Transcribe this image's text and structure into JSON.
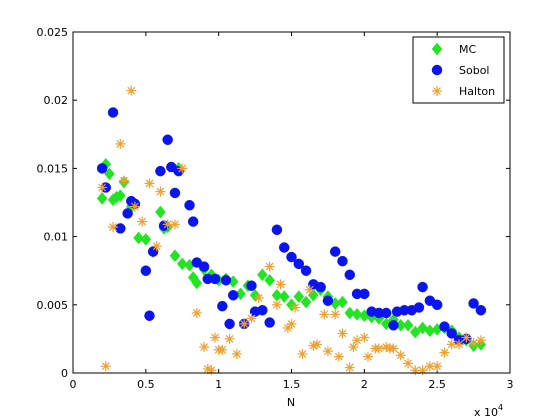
{
  "chart_data": {
    "type": "scatter",
    "title": "",
    "xlabel": "N",
    "ylabel": "",
    "x_exponent_label": "x 10",
    "x_exponent_power": "4",
    "xlim": [
      0,
      30000
    ],
    "ylim": [
      0,
      0.025
    ],
    "x_ticks": [
      0,
      5000,
      10000,
      15000,
      20000,
      25000,
      30000
    ],
    "x_tick_labels": [
      "0",
      "0.5",
      "1",
      "1.5",
      "2",
      "2.5",
      "3"
    ],
    "y_ticks": [
      0,
      0.005,
      0.01,
      0.015,
      0.02,
      0.025
    ],
    "y_tick_labels": [
      "0",
      "0.005",
      "0.01",
      "0.015",
      "0.02",
      "0.025"
    ],
    "grid": false,
    "legend_position": "top-right",
    "series": [
      {
        "name": "MC",
        "color": "#22e522",
        "marker": "diamond",
        "points": [
          [
            2000,
            0.0128
          ],
          [
            2250,
            0.0153
          ],
          [
            2500,
            0.0146
          ],
          [
            2750,
            0.0127
          ],
          [
            3000,
            0.0129
          ],
          [
            3250,
            0.013
          ],
          [
            3500,
            0.014
          ],
          [
            4000,
            0.0122
          ],
          [
            4500,
            0.0099
          ],
          [
            5000,
            0.0098
          ],
          [
            5500,
            0.0089
          ],
          [
            6000,
            0.0118
          ],
          [
            6250,
            0.0106
          ],
          [
            6500,
            0.0107
          ],
          [
            7000,
            0.0086
          ],
          [
            7250,
            0.015
          ],
          [
            7500,
            0.008
          ],
          [
            8000,
            0.0079
          ],
          [
            8250,
            0.007
          ],
          [
            8500,
            0.0066
          ],
          [
            9000,
            0.0076
          ],
          [
            9500,
            0.0072
          ],
          [
            10000,
            0.0068
          ],
          [
            10500,
            0.0069
          ],
          [
            11000,
            0.0067
          ],
          [
            11500,
            0.0058
          ],
          [
            12000,
            0.0064
          ],
          [
            12500,
            0.0057
          ],
          [
            13000,
            0.0072
          ],
          [
            13500,
            0.0068
          ],
          [
            14000,
            0.0057
          ],
          [
            14500,
            0.0056
          ],
          [
            15000,
            0.005
          ],
          [
            15500,
            0.0056
          ],
          [
            16000,
            0.0052
          ],
          [
            16500,
            0.0057
          ],
          [
            17000,
            0.0061
          ],
          [
            17500,
            0.0056
          ],
          [
            18000,
            0.0051
          ],
          [
            18500,
            0.0052
          ],
          [
            19000,
            0.0044
          ],
          [
            19500,
            0.0043
          ],
          [
            20000,
            0.0042
          ],
          [
            20500,
            0.0041
          ],
          [
            21000,
            0.004
          ],
          [
            21500,
            0.0036
          ],
          [
            22000,
            0.0039
          ],
          [
            22500,
            0.0035
          ],
          [
            23000,
            0.0035
          ],
          [
            23500,
            0.003
          ],
          [
            24000,
            0.0033
          ],
          [
            24500,
            0.0031
          ],
          [
            25000,
            0.0032
          ],
          [
            25500,
            0.0033
          ],
          [
            26000,
            0.0031
          ],
          [
            26500,
            0.0026
          ],
          [
            27000,
            0.0024
          ],
          [
            27500,
            0.002
          ],
          [
            28000,
            0.0021
          ]
        ]
      },
      {
        "name": "Sobol",
        "color": "#0a14f0",
        "marker": "circle",
        "points": [
          [
            2000,
            0.015
          ],
          [
            2250,
            0.0136
          ],
          [
            2750,
            0.0191
          ],
          [
            3250,
            0.0106
          ],
          [
            3750,
            0.0117
          ],
          [
            4000,
            0.0126
          ],
          [
            4250,
            0.0124
          ],
          [
            5000,
            0.0075
          ],
          [
            5250,
            0.0042
          ],
          [
            5500,
            0.0089
          ],
          [
            6000,
            0.0148
          ],
          [
            6250,
            0.0108
          ],
          [
            6500,
            0.0171
          ],
          [
            6750,
            0.0151
          ],
          [
            7000,
            0.0132
          ],
          [
            7250,
            0.0148
          ],
          [
            8000,
            0.0123
          ],
          [
            8250,
            0.0111
          ],
          [
            8500,
            0.0081
          ],
          [
            9000,
            0.0078
          ],
          [
            9250,
            0.0069
          ],
          [
            9750,
            0.0069
          ],
          [
            10250,
            0.0049
          ],
          [
            10500,
            0.0068
          ],
          [
            10750,
            0.0036
          ],
          [
            11000,
            0.0057
          ],
          [
            11750,
            0.0036
          ],
          [
            12250,
            0.0064
          ],
          [
            12500,
            0.0045
          ],
          [
            13000,
            0.0046
          ],
          [
            13500,
            0.0037
          ],
          [
            14000,
            0.0105
          ],
          [
            14500,
            0.0092
          ],
          [
            15000,
            0.0085
          ],
          [
            15500,
            0.008
          ],
          [
            16000,
            0.0075
          ],
          [
            16500,
            0.0065
          ],
          [
            17000,
            0.0063
          ],
          [
            17500,
            0.0053
          ],
          [
            18000,
            0.0089
          ],
          [
            18500,
            0.0082
          ],
          [
            19000,
            0.0072
          ],
          [
            19500,
            0.0058
          ],
          [
            20000,
            0.0058
          ],
          [
            20500,
            0.0045
          ],
          [
            21000,
            0.0044
          ],
          [
            21500,
            0.0044
          ],
          [
            22000,
            0.0035
          ],
          [
            22250,
            0.0045
          ],
          [
            22750,
            0.0046
          ],
          [
            23250,
            0.0046
          ],
          [
            23750,
            0.0048
          ],
          [
            24000,
            0.0063
          ],
          [
            24500,
            0.0053
          ],
          [
            25000,
            0.005
          ],
          [
            25500,
            0.0034
          ],
          [
            26000,
            0.0029
          ],
          [
            26500,
            0.0024
          ],
          [
            27000,
            0.0025
          ],
          [
            27500,
            0.0051
          ],
          [
            28000,
            0.0046
          ]
        ]
      },
      {
        "name": "Halton",
        "color": "#f0a030",
        "marker": "star",
        "points": [
          [
            2000,
            0.0136
          ],
          [
            2250,
            0.0005
          ],
          [
            2750,
            0.0107
          ],
          [
            3250,
            0.0168
          ],
          [
            3500,
            0.0141
          ],
          [
            4000,
            0.0207
          ],
          [
            4250,
            0.0122
          ],
          [
            4750,
            0.0111
          ],
          [
            5250,
            0.0139
          ],
          [
            5750,
            0.0093
          ],
          [
            6000,
            0.0133
          ],
          [
            6500,
            0.0109
          ],
          [
            7000,
            0.0109
          ],
          [
            7500,
            0.015
          ],
          [
            8500,
            0.0044
          ],
          [
            9000,
            0.0019
          ],
          [
            9250,
            0.0003
          ],
          [
            9500,
            0.0002
          ],
          [
            9750,
            0.0026
          ],
          [
            10000,
            0.0017
          ],
          [
            10250,
            0.0017
          ],
          [
            10750,
            0.0025
          ],
          [
            11250,
            0.0014
          ],
          [
            11750,
            0.0036
          ],
          [
            12250,
            0.004
          ],
          [
            12750,
            0.0055
          ],
          [
            13500,
            0.0078
          ],
          [
            14000,
            0.005
          ],
          [
            14250,
            0.0065
          ],
          [
            14750,
            0.0033
          ],
          [
            15000,
            0.0036
          ],
          [
            15250,
            0.0048
          ],
          [
            15750,
            0.0014
          ],
          [
            16250,
            0.0061
          ],
          [
            16500,
            0.002
          ],
          [
            16750,
            0.0021
          ],
          [
            17250,
            0.0043
          ],
          [
            17500,
            0.0016
          ],
          [
            18000,
            0.0043
          ],
          [
            18250,
            0.0012
          ],
          [
            18500,
            0.0029
          ],
          [
            19000,
            0.0004
          ],
          [
            19250,
            0.0019
          ],
          [
            19500,
            0.0024
          ],
          [
            20000,
            0.0026
          ],
          [
            20250,
            0.0012
          ],
          [
            20750,
            0.0018
          ],
          [
            21000,
            0.0018
          ],
          [
            21500,
            0.0019
          ],
          [
            21750,
            0.0018
          ],
          [
            22000,
            0.0018
          ],
          [
            22500,
            0.0013
          ],
          [
            23000,
            0.0007
          ],
          [
            23500,
            0.0002
          ],
          [
            24000,
            0.0002
          ],
          [
            24500,
            0.0005
          ],
          [
            25000,
            0.0005
          ],
          [
            25500,
            0.0015
          ],
          [
            26000,
            0.0021
          ],
          [
            26500,
            0.0021
          ],
          [
            27000,
            0.0026
          ],
          [
            27500,
            0.0022
          ],
          [
            28000,
            0.0024
          ]
        ]
      }
    ]
  }
}
